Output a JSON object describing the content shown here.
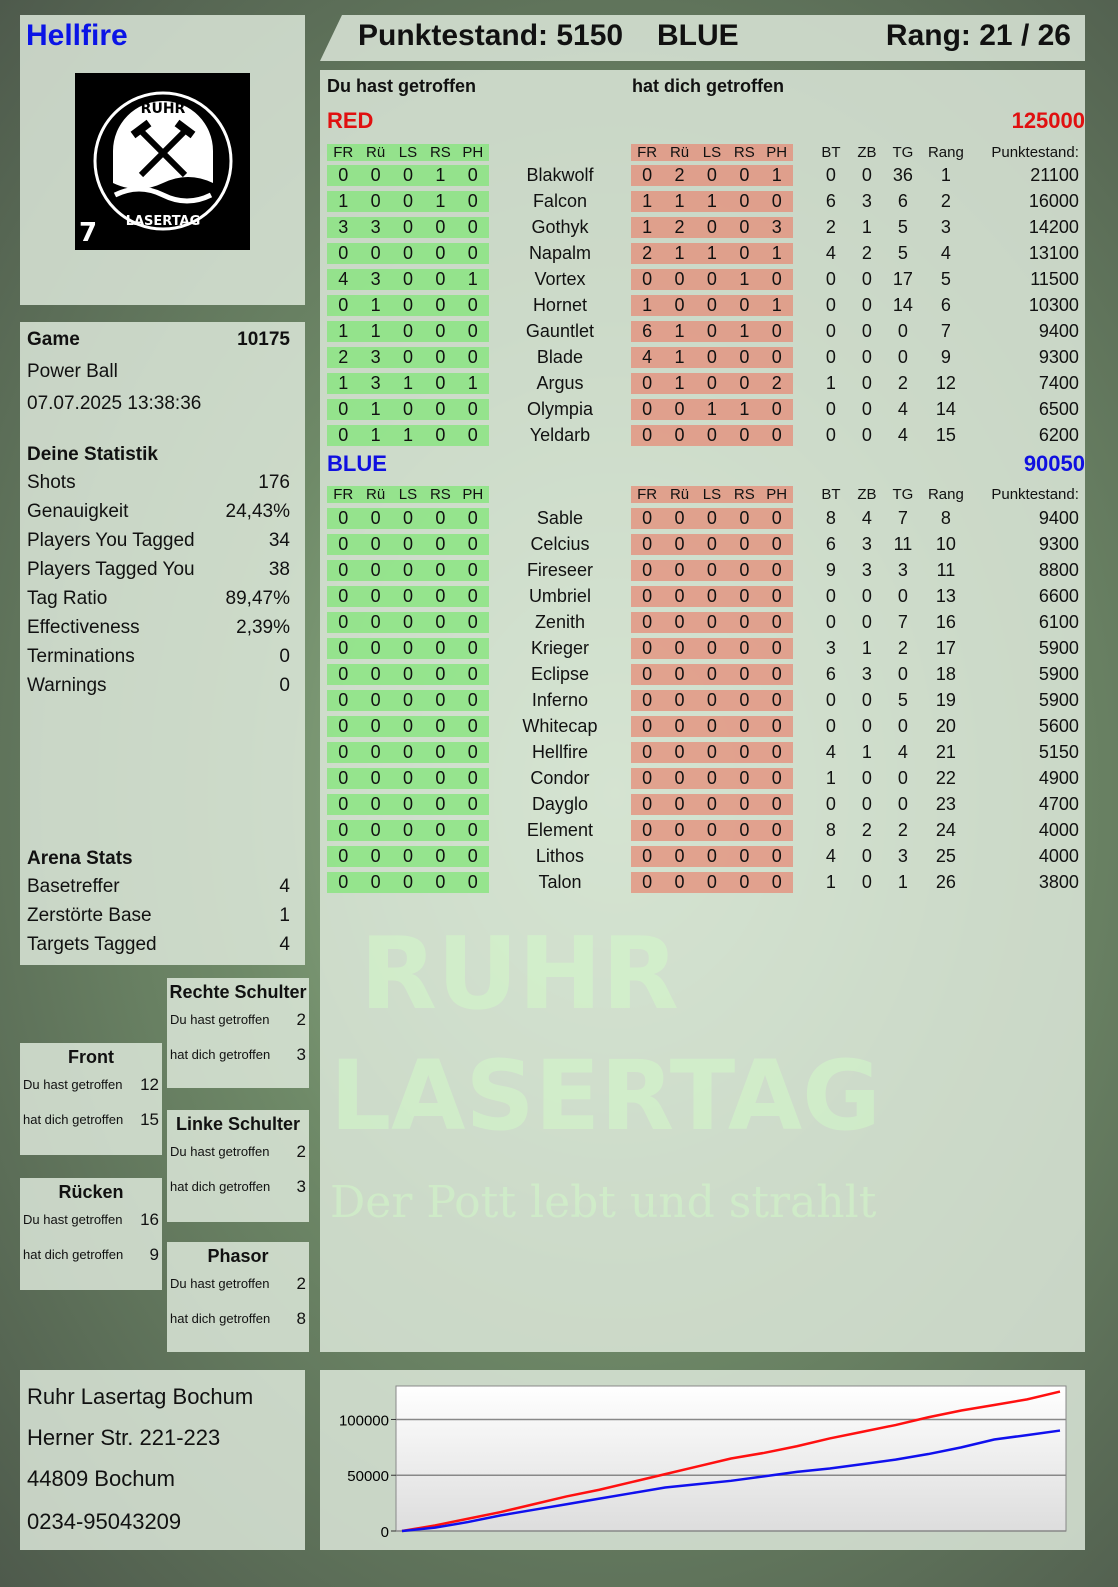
{
  "player": {
    "name": "Hellfire",
    "logo_text": "RUHR LASERTAG",
    "logo_number": "7"
  },
  "header": {
    "score": "Punktestand: 5150",
    "team": "BLUE",
    "rank": "Rang: 21 / 26"
  },
  "main": {
    "you_hit": "Du hast getroffen",
    "hit_you": "hat dich getroffen",
    "columns": [
      "FR",
      "Rü",
      "LS",
      "RS",
      "PH"
    ],
    "extra_columns": [
      "BT",
      "ZB",
      "TG",
      "Rang",
      "Punktestand:"
    ],
    "teams": [
      {
        "name": "RED",
        "total": "125000",
        "color": "#e01010",
        "players": [
          {
            "you": [
              0,
              0,
              0,
              1,
              0
            ],
            "name": "Blakwolf",
            "them": [
              0,
              2,
              0,
              0,
              1
            ],
            "bt": 0,
            "zb": 0,
            "tg": 36,
            "rang": 1,
            "score": 21100
          },
          {
            "you": [
              1,
              0,
              0,
              1,
              0
            ],
            "name": "Falcon",
            "them": [
              1,
              1,
              1,
              0,
              0
            ],
            "bt": 6,
            "zb": 3,
            "tg": 6,
            "rang": 2,
            "score": 16000
          },
          {
            "you": [
              3,
              3,
              0,
              0,
              0
            ],
            "name": "Gothyk",
            "them": [
              1,
              2,
              0,
              0,
              3
            ],
            "bt": 2,
            "zb": 1,
            "tg": 5,
            "rang": 3,
            "score": 14200
          },
          {
            "you": [
              0,
              0,
              0,
              0,
              0
            ],
            "name": "Napalm",
            "them": [
              2,
              1,
              1,
              0,
              1
            ],
            "bt": 4,
            "zb": 2,
            "tg": 5,
            "rang": 4,
            "score": 13100
          },
          {
            "you": [
              4,
              3,
              0,
              0,
              1
            ],
            "name": "Vortex",
            "them": [
              0,
              0,
              0,
              1,
              0
            ],
            "bt": 0,
            "zb": 0,
            "tg": 17,
            "rang": 5,
            "score": 11500
          },
          {
            "you": [
              0,
              1,
              0,
              0,
              0
            ],
            "name": "Hornet",
            "them": [
              1,
              0,
              0,
              0,
              1
            ],
            "bt": 0,
            "zb": 0,
            "tg": 14,
            "rang": 6,
            "score": 10300
          },
          {
            "you": [
              1,
              1,
              0,
              0,
              0
            ],
            "name": "Gauntlet",
            "them": [
              6,
              1,
              0,
              1,
              0
            ],
            "bt": 0,
            "zb": 0,
            "tg": 0,
            "rang": 7,
            "score": 9400
          },
          {
            "you": [
              2,
              3,
              0,
              0,
              0
            ],
            "name": "Blade",
            "them": [
              4,
              1,
              0,
              0,
              0
            ],
            "bt": 0,
            "zb": 0,
            "tg": 0,
            "rang": 9,
            "score": 9300
          },
          {
            "you": [
              1,
              3,
              1,
              0,
              1
            ],
            "name": "Argus",
            "them": [
              0,
              1,
              0,
              0,
              2
            ],
            "bt": 1,
            "zb": 0,
            "tg": 2,
            "rang": 12,
            "score": 7400
          },
          {
            "you": [
              0,
              1,
              0,
              0,
              0
            ],
            "name": "Olympia",
            "them": [
              0,
              0,
              1,
              1,
              0
            ],
            "bt": 0,
            "zb": 0,
            "tg": 4,
            "rang": 14,
            "score": 6500
          },
          {
            "you": [
              0,
              1,
              1,
              0,
              0
            ],
            "name": "Yeldarb",
            "them": [
              0,
              0,
              0,
              0,
              0
            ],
            "bt": 0,
            "zb": 0,
            "tg": 4,
            "rang": 15,
            "score": 6200
          }
        ]
      },
      {
        "name": "BLUE",
        "total": "90050",
        "color": "#1010e0",
        "players": [
          {
            "you": [
              0,
              0,
              0,
              0,
              0
            ],
            "name": "Sable",
            "them": [
              0,
              0,
              0,
              0,
              0
            ],
            "bt": 8,
            "zb": 4,
            "tg": 7,
            "rang": 8,
            "score": 9400
          },
          {
            "you": [
              0,
              0,
              0,
              0,
              0
            ],
            "name": "Celcius",
            "them": [
              0,
              0,
              0,
              0,
              0
            ],
            "bt": 6,
            "zb": 3,
            "tg": 11,
            "rang": 10,
            "score": 9300
          },
          {
            "you": [
              0,
              0,
              0,
              0,
              0
            ],
            "name": "Fireseer",
            "them": [
              0,
              0,
              0,
              0,
              0
            ],
            "bt": 9,
            "zb": 3,
            "tg": 3,
            "rang": 11,
            "score": 8800
          },
          {
            "you": [
              0,
              0,
              0,
              0,
              0
            ],
            "name": "Umbriel",
            "them": [
              0,
              0,
              0,
              0,
              0
            ],
            "bt": 0,
            "zb": 0,
            "tg": 0,
            "rang": 13,
            "score": 6600
          },
          {
            "you": [
              0,
              0,
              0,
              0,
              0
            ],
            "name": "Zenith",
            "them": [
              0,
              0,
              0,
              0,
              0
            ],
            "bt": 0,
            "zb": 0,
            "tg": 7,
            "rang": 16,
            "score": 6100
          },
          {
            "you": [
              0,
              0,
              0,
              0,
              0
            ],
            "name": "Krieger",
            "them": [
              0,
              0,
              0,
              0,
              0
            ],
            "bt": 3,
            "zb": 1,
            "tg": 2,
            "rang": 17,
            "score": 5900
          },
          {
            "you": [
              0,
              0,
              0,
              0,
              0
            ],
            "name": "Eclipse",
            "them": [
              0,
              0,
              0,
              0,
              0
            ],
            "bt": 6,
            "zb": 3,
            "tg": 0,
            "rang": 18,
            "score": 5900
          },
          {
            "you": [
              0,
              0,
              0,
              0,
              0
            ],
            "name": "Inferno",
            "them": [
              0,
              0,
              0,
              0,
              0
            ],
            "bt": 0,
            "zb": 0,
            "tg": 5,
            "rang": 19,
            "score": 5900
          },
          {
            "you": [
              0,
              0,
              0,
              0,
              0
            ],
            "name": "Whitecap",
            "them": [
              0,
              0,
              0,
              0,
              0
            ],
            "bt": 0,
            "zb": 0,
            "tg": 0,
            "rang": 20,
            "score": 5600
          },
          {
            "you": [
              0,
              0,
              0,
              0,
              0
            ],
            "name": "Hellfire",
            "them": [
              0,
              0,
              0,
              0,
              0
            ],
            "bt": 4,
            "zb": 1,
            "tg": 4,
            "rang": 21,
            "score": 5150
          },
          {
            "you": [
              0,
              0,
              0,
              0,
              0
            ],
            "name": "Condor",
            "them": [
              0,
              0,
              0,
              0,
              0
            ],
            "bt": 1,
            "zb": 0,
            "tg": 0,
            "rang": 22,
            "score": 4900
          },
          {
            "you": [
              0,
              0,
              0,
              0,
              0
            ],
            "name": "Dayglo",
            "them": [
              0,
              0,
              0,
              0,
              0
            ],
            "bt": 0,
            "zb": 0,
            "tg": 0,
            "rang": 23,
            "score": 4700
          },
          {
            "you": [
              0,
              0,
              0,
              0,
              0
            ],
            "name": "Element",
            "them": [
              0,
              0,
              0,
              0,
              0
            ],
            "bt": 8,
            "zb": 2,
            "tg": 2,
            "rang": 24,
            "score": 4000
          },
          {
            "you": [
              0,
              0,
              0,
              0,
              0
            ],
            "name": "Lithos",
            "them": [
              0,
              0,
              0,
              0,
              0
            ],
            "bt": 4,
            "zb": 0,
            "tg": 3,
            "rang": 25,
            "score": 4000
          },
          {
            "you": [
              0,
              0,
              0,
              0,
              0
            ],
            "name": "Talon",
            "them": [
              0,
              0,
              0,
              0,
              0
            ],
            "bt": 1,
            "zb": 0,
            "tg": 1,
            "rang": 26,
            "score": 3800
          }
        ]
      }
    ]
  },
  "game": {
    "label": "Game",
    "number": "10175",
    "mode": "Power Ball",
    "datetime": "07.07.2025 13:38:36"
  },
  "statistik": {
    "title": "Deine Statistik",
    "rows": [
      {
        "label": "Shots",
        "value": "176"
      },
      {
        "label": "Genauigkeit",
        "value": "24,43%"
      },
      {
        "label": "Players You Tagged",
        "value": "34"
      },
      {
        "label": "Players Tagged You",
        "value": "38"
      },
      {
        "label": "Tag Ratio",
        "value": "89,47%"
      },
      {
        "label": "Effectiveness",
        "value": "2,39%"
      },
      {
        "label": "Terminations",
        "value": "0"
      },
      {
        "label": "Warnings",
        "value": "0"
      }
    ]
  },
  "arena": {
    "title": "Arena Stats",
    "rows": [
      {
        "label": "Basetreffer",
        "value": "4"
      },
      {
        "label": "Zerstörte Base",
        "value": "1"
      },
      {
        "label": "Targets Tagged",
        "value": "4"
      }
    ]
  },
  "hitzones": [
    {
      "title": "Rechte Schulter",
      "you_hit": "2",
      "hit_you": "3"
    },
    {
      "title": "Front",
      "you_hit": "12",
      "hit_you": "15"
    },
    {
      "title": "Linke Schulter",
      "you_hit": "2",
      "hit_you": "3"
    },
    {
      "title": "Rücken",
      "you_hit": "16",
      "hit_you": "9"
    },
    {
      "title": "Phasor",
      "you_hit": "2",
      "hit_you": "8"
    }
  ],
  "address": {
    "line1": "Ruhr Lasertag Bochum",
    "line2": "Herner Str. 221-223",
    "line3": "44809 Bochum",
    "line4": "0234-95043209"
  },
  "watermark": {
    "line1": "RUHR",
    "line2": "LASERTAG",
    "line3": "Der Pott lebt und strahlt"
  },
  "chart_data": {
    "type": "line",
    "ylim": [
      0,
      130000
    ],
    "yticks": [
      "0",
      "50000",
      "100000"
    ],
    "grid": true,
    "series": [
      {
        "color": "#ff1010",
        "values": [
          0,
          5000,
          11000,
          17000,
          24000,
          31000,
          37000,
          44000,
          51000,
          58000,
          65000,
          70000,
          76000,
          83000,
          89000,
          95000,
          102000,
          108000,
          113000,
          118000,
          125000
        ]
      },
      {
        "color": "#1010ee",
        "values": [
          0,
          3000,
          8000,
          14000,
          19000,
          24000,
          29000,
          34000,
          39000,
          42000,
          45000,
          49000,
          53000,
          56000,
          60000,
          64000,
          69000,
          75000,
          82000,
          86000,
          90050
        ]
      }
    ]
  }
}
